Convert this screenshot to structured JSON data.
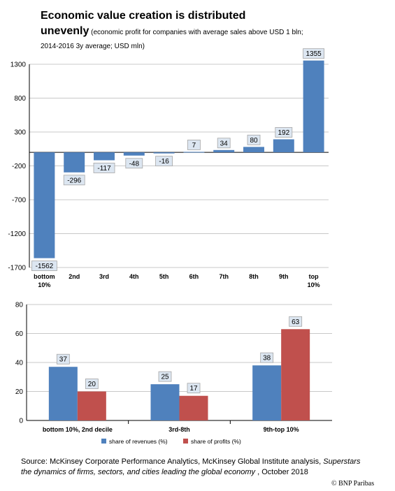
{
  "title": {
    "line1": "Economic value creation is distributed",
    "line2": "unevenly",
    "subtitle_inline": " (economic profit for companies with average sales above USD 1 bln;",
    "subtitle_line2": "2014-2016 3y average; USD mln)"
  },
  "colors": {
    "blue": "#4f81bd",
    "red": "#c0504d",
    "axis": "#000000",
    "grid": "#c8c8c8",
    "label_bg": "#dce6f1"
  },
  "chart_data": [
    {
      "type": "bar",
      "categories": [
        "bottom 10%",
        "2nd",
        "3rd",
        "4th",
        "5th",
        "6th",
        "7th",
        "8th",
        "9th",
        "top 10%"
      ],
      "values": [
        -1562,
        -296,
        -117,
        -48,
        -16,
        7,
        34,
        80,
        192,
        1355
      ],
      "data_labels": [
        "-1562",
        "-296",
        "-117",
        "-48",
        "-16",
        "7",
        "34",
        "80",
        "192",
        "1355"
      ],
      "ylim": [
        -1700,
        1300
      ],
      "yticks": [
        1300,
        800,
        300,
        -200,
        -700,
        -1200,
        -1700
      ],
      "grid": true,
      "color": "#4f81bd"
    },
    {
      "type": "bar",
      "categories": [
        "bottom 10%, 2nd decile",
        "3rd-8th",
        "9th-top 10%"
      ],
      "series": [
        {
          "name": "share of revenues (%)",
          "values": [
            37,
            25,
            38
          ],
          "labels": [
            "37",
            "25",
            "38"
          ],
          "color": "#4f81bd"
        },
        {
          "name": "share of profits (%)",
          "values": [
            20,
            17,
            63
          ],
          "labels": [
            "20",
            "17",
            "63"
          ],
          "color": "#c0504d"
        }
      ],
      "ylim": [
        0,
        80
      ],
      "yticks": [
        0,
        20,
        40,
        60,
        80
      ],
      "grid": true,
      "legend": "bottom"
    }
  ],
  "source": {
    "prefix": "Source: McKinsey Corporate Performance Analytics, McKinsey Global Institute  analysis, ",
    "italic1": "Superstars",
    "italic2": "the dynamics of firms, sectors, and cities leading the global economy",
    "suffix": " , October 2018"
  },
  "credit": "© BNP Paribas"
}
